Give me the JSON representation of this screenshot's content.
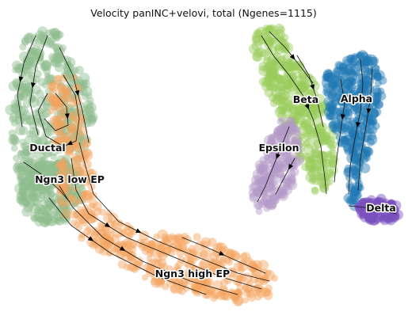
{
  "chart_data": {
    "type": "scatter",
    "title": "Velocity panINC+velovi, total (Ngenes=1115)",
    "xlabel": "",
    "ylabel": "",
    "grid": false,
    "axes_visible": false,
    "legend": "on data",
    "overlay": "velocity streamlines with arrowheads",
    "clusters": [
      {
        "name": "Ductal",
        "color": "#8fbc8f"
      },
      {
        "name": "Ngn3 low EP",
        "color": "#8fbc8f"
      },
      {
        "name": "Ngn3 high EP",
        "color": "#f4a460"
      },
      {
        "name": "Beta",
        "color": "#9acd5a"
      },
      {
        "name": "Alpha",
        "color": "#1f77b4"
      },
      {
        "name": "Epsilon",
        "color": "#b39ac8"
      },
      {
        "name": "Delta",
        "color": "#7b4fbf"
      }
    ]
  }
}
